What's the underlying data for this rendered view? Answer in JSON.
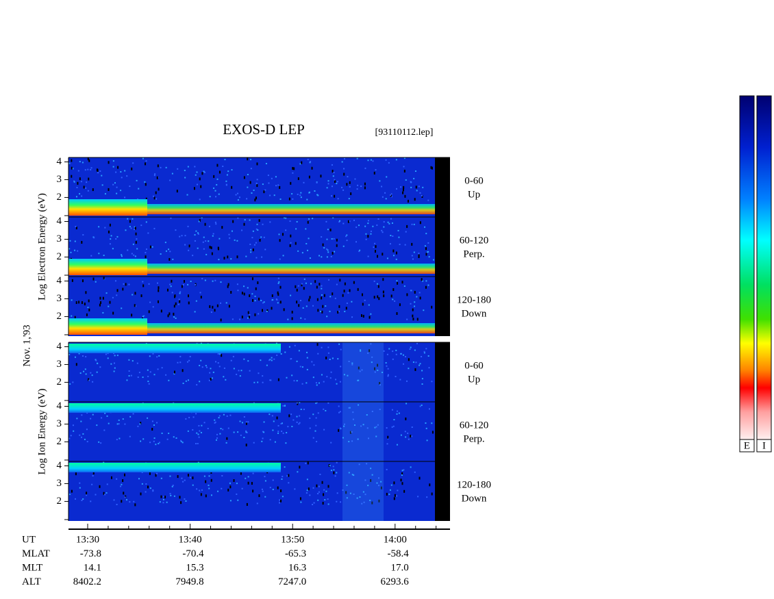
{
  "chart_data": {
    "type": "spectrogram",
    "title": "EXOS-D LEP",
    "file": "[93110112.lep]",
    "date": "Nov. 1,'93",
    "ylim": [
      0.9,
      4.25
    ],
    "yticks": [
      2,
      3,
      4
    ],
    "groups": [
      {
        "ylabel": "Log Electron Energy (eV)",
        "panels": [
          {
            "label": "0-60",
            "direction": "Up"
          },
          {
            "label": "60-120",
            "direction": "Perp."
          },
          {
            "label": "120-180",
            "direction": "Down"
          }
        ]
      },
      {
        "ylabel": "Log Ion Energy (eV)",
        "panels": [
          {
            "label": "0-60",
            "direction": "Up"
          },
          {
            "label": "60-120",
            "direction": "Perp."
          },
          {
            "label": "120-180",
            "direction": "Down"
          }
        ]
      }
    ],
    "ephemeris": [
      {
        "label": "UT",
        "values": [
          "13:30",
          "13:40",
          "13:50",
          "14:00"
        ]
      },
      {
        "label": "MLAT",
        "values": [
          "-73.8",
          "-70.4",
          "-65.3",
          "-58.4"
        ]
      },
      {
        "label": "MLT",
        "values": [
          "14.1",
          "15.3",
          "16.3",
          "17.0"
        ]
      },
      {
        "label": "ALT",
        "values": [
          "8402.2",
          "7949.8",
          "7247.0",
          "6293.6"
        ]
      }
    ],
    "colorbars": [
      "E",
      "I"
    ]
  }
}
